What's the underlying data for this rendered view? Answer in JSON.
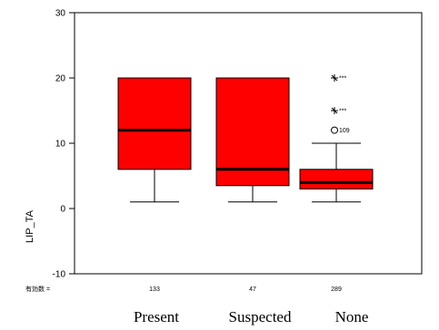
{
  "chart_data": {
    "type": "box",
    "ylabel": "LIP_TA",
    "ylim": [
      -10,
      30
    ],
    "yticks": [
      -10,
      0,
      10,
      20,
      30
    ],
    "n_label": "有効数 =",
    "colors": {
      "box": "#ff0000",
      "median": "#000000",
      "line": "#000000"
    },
    "categories": [
      "Present",
      "Suspected",
      "None"
    ],
    "boxes": [
      {
        "category": "Present",
        "n": "133",
        "whisker_low": 1,
        "q1": 6,
        "median": 12,
        "q3": 20,
        "whisker_high": 20,
        "outliers": []
      },
      {
        "category": "Suspected",
        "n": "47",
        "whisker_low": 1,
        "q1": 3.5,
        "median": 6,
        "q3": 20,
        "whisker_high": 20,
        "outliers": []
      },
      {
        "category": "None",
        "n": "289",
        "whisker_low": 1,
        "q1": 3,
        "median": 4,
        "q3": 6,
        "whisker_high": 10,
        "outliers": [
          {
            "value": 12,
            "marker": "circle",
            "label": "109"
          },
          {
            "value": 15,
            "marker": "star",
            "label": "***"
          },
          {
            "value": 20,
            "marker": "star",
            "label": "***"
          }
        ]
      }
    ]
  }
}
